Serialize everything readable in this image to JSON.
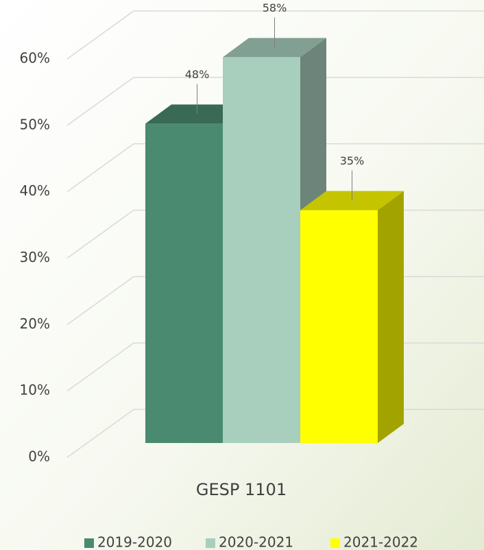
{
  "chart_data": {
    "type": "bar3d",
    "categories": [
      "GESP 1101"
    ],
    "series": [
      {
        "name": "2019-2020",
        "color": "#4a8a70",
        "values": [
          48
        ],
        "value_labels": [
          "48%"
        ]
      },
      {
        "name": "2020-2021",
        "color": "#a8cebe",
        "values": [
          58
        ],
        "value_labels": [
          "58%"
        ]
      },
      {
        "name": "2021-2022",
        "color": "#ffff00",
        "values": [
          35
        ],
        "value_labels": [
          "35%"
        ]
      }
    ],
    "ylim": [
      0,
      60
    ],
    "yticks": [
      {
        "value": 0,
        "label": "0%"
      },
      {
        "value": 10,
        "label": "10%"
      },
      {
        "value": 20,
        "label": "20%"
      },
      {
        "value": 30,
        "label": "30%"
      },
      {
        "value": 40,
        "label": "40%"
      },
      {
        "value": 50,
        "label": "50%"
      },
      {
        "value": 60,
        "label": "60%"
      }
    ],
    "grid": true,
    "legend": "bottom"
  }
}
